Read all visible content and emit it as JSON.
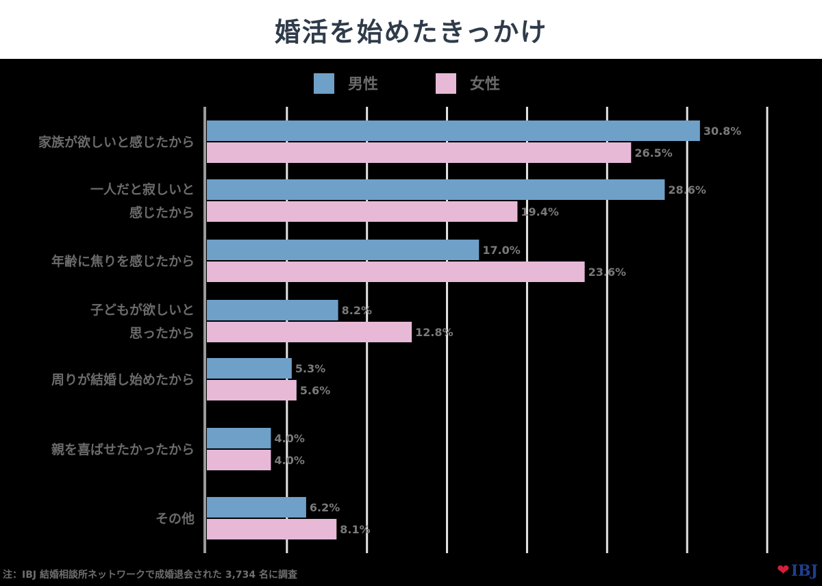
{
  "title": "婚活を始めたきっかけ",
  "footnote": "注：IBJ 結婚相談所ネットワークで成婚退会された 3,734 名に調査",
  "brand": {
    "heart": "❤",
    "text": "IBJ"
  },
  "colors": {
    "male": "#6fa0c8",
    "female": "#e8b9d7",
    "grid": "#e6e6e6",
    "axis": "#9a9a9a"
  },
  "chart_data": {
    "type": "bar",
    "orientation": "horizontal",
    "title": "婚活を始めたきっかけ",
    "xlim": [
      0,
      35
    ],
    "grid": true,
    "legend_position": "top",
    "categories": [
      [
        "家族が欲しいと感じたから"
      ],
      [
        "一人だと寂しいと",
        "感じたから"
      ],
      [
        "年齢に焦りを感じたから"
      ],
      [
        "子どもが欲しいと",
        "思ったから"
      ],
      [
        "周りが結婚し始めたから"
      ],
      [
        "親を喜ばせたかったから"
      ],
      [
        "その他"
      ]
    ],
    "series": [
      {
        "name": "男性",
        "values": [
          30.8,
          28.6,
          17.0,
          8.2,
          5.3,
          4.0,
          6.2
        ],
        "labels": [
          "30.8%",
          "28.6%",
          "17.0%",
          "8.2%",
          "5.3%",
          "4.0%",
          "6.2%"
        ]
      },
      {
        "name": "女性",
        "values": [
          26.5,
          19.4,
          23.6,
          12.8,
          5.6,
          4.0,
          8.1
        ],
        "labels": [
          "26.5%",
          "19.4%",
          "23.6%",
          "12.8%",
          "5.6%",
          "4.0%",
          "8.1%"
        ]
      }
    ]
  }
}
